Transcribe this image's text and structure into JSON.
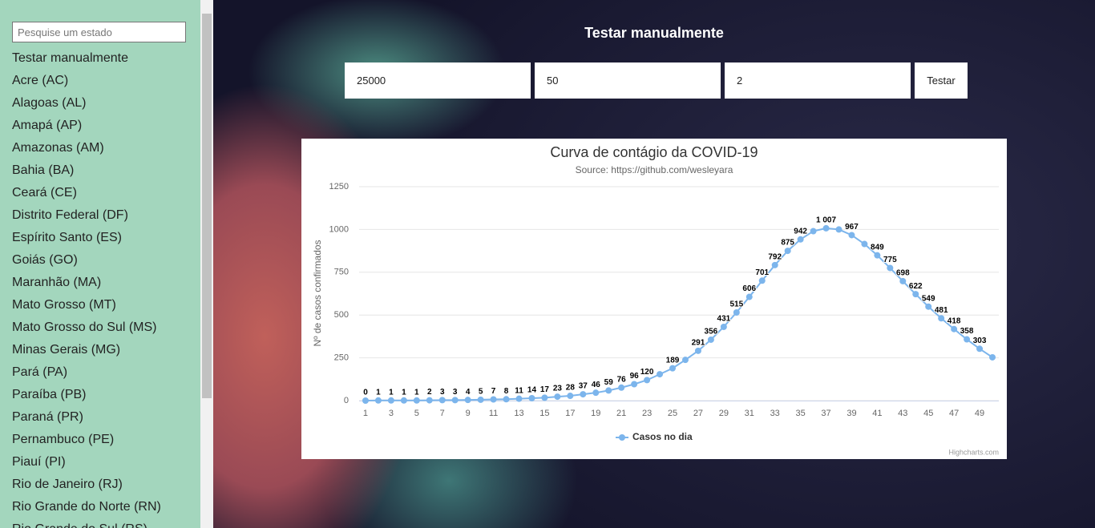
{
  "sidebar": {
    "search_placeholder": "Pesquise um estado",
    "items": [
      "Testar manualmente",
      "Acre (AC)",
      "Alagoas (AL)",
      "Amapá (AP)",
      "Amazonas (AM)",
      "Bahia (BA)",
      "Ceará (CE)",
      "Distrito Federal (DF)",
      "Espírito Santo (ES)",
      "Goiás (GO)",
      "Maranhão (MA)",
      "Mato Grosso (MT)",
      "Mato Grosso do Sul (MS)",
      "Minas Gerais (MG)",
      "Pará (PA)",
      "Paraíba (PB)",
      "Paraná (PR)",
      "Pernambuco (PE)",
      "Piauí (PI)",
      "Rio de Janeiro (RJ)",
      "Rio Grande do Norte (RN)",
      "Rio Grande do Sul (RS)"
    ]
  },
  "main": {
    "heading": "Testar manualmente",
    "inputs": [
      "25000",
      "50",
      "2"
    ],
    "button": "Testar"
  },
  "chart_data": {
    "type": "line",
    "title": "Curva de contágio da COVID-19",
    "subtitle": "Source: https://github.com/wesleyara",
    "y_label": "Nº de casos confirmados",
    "credits": "Highcharts.com",
    "x": [
      1,
      2,
      3,
      4,
      5,
      6,
      7,
      8,
      9,
      10,
      11,
      12,
      13,
      14,
      15,
      16,
      17,
      18,
      19,
      20,
      21,
      22,
      23,
      24,
      25,
      26,
      27,
      28,
      29,
      30,
      31,
      32,
      33,
      34,
      35,
      36,
      37,
      38,
      39,
      40,
      41,
      42,
      43,
      44,
      45,
      46,
      47,
      48,
      49,
      50
    ],
    "xlim": [
      0.5,
      50.5
    ],
    "xticks": [
      1,
      3,
      5,
      7,
      9,
      11,
      13,
      15,
      17,
      19,
      21,
      23,
      25,
      27,
      29,
      31,
      33,
      35,
      37,
      39,
      41,
      43,
      45,
      47,
      49
    ],
    "ylim": [
      0,
      1250
    ],
    "yticks": [
      0,
      250,
      500,
      750,
      1000,
      1250
    ],
    "grid": true,
    "series": [
      {
        "name": "Casos no dia",
        "color": "#7cb5ec",
        "values": [
          0,
          1,
          1,
          1,
          1,
          2,
          3,
          3,
          4,
          5,
          7,
          8,
          11,
          14,
          17,
          23,
          28,
          37,
          46,
          59,
          76,
          96,
          120,
          154,
          189,
          238,
          291,
          356,
          431,
          515,
          606,
          701,
          792,
          875,
          942,
          990,
          1007,
          1000,
          967,
          915,
          849,
          775,
          698,
          622,
          549,
          481,
          418,
          358,
          303,
          253
        ],
        "value_labels": [
          "0",
          "1",
          "1",
          "1",
          "1",
          "2",
          "3",
          "3",
          "4",
          "5",
          "7",
          "8",
          "11",
          "14",
          "17",
          "23",
          "28",
          "37",
          "46",
          "59",
          "76",
          "96",
          "120",
          null,
          "189",
          null,
          "291",
          "356",
          "431",
          "515",
          "606",
          "701",
          "792",
          "875",
          "942",
          null,
          "1 007",
          null,
          "967",
          null,
          "849",
          "775",
          "698",
          "622",
          "549",
          "481",
          "418",
          "358",
          "303",
          null
        ]
      }
    ]
  }
}
